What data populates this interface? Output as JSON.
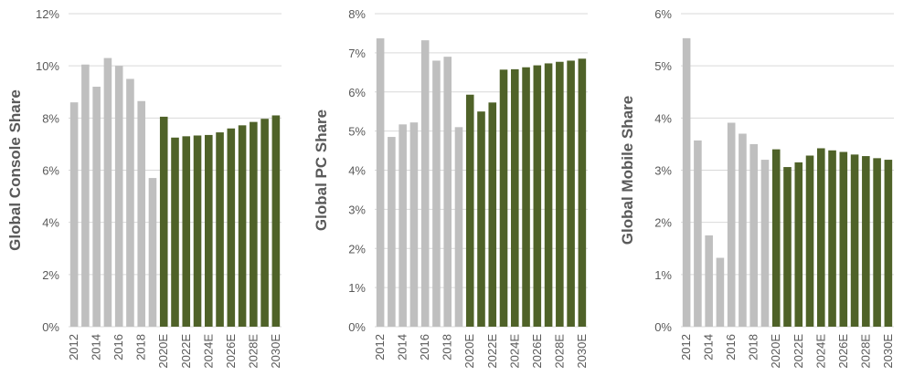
{
  "chart_data": [
    {
      "type": "bar",
      "ylabel": "Global Console Share",
      "ylim": [
        0,
        12
      ],
      "yticks": [
        0,
        2,
        4,
        6,
        8,
        10,
        12
      ],
      "ytick_labels": [
        "0%",
        "2%",
        "4%",
        "6%",
        "8%",
        "10%",
        "12%"
      ],
      "categories": [
        "2012",
        "2013",
        "2014",
        "2015",
        "2016",
        "2017",
        "2018",
        "2019",
        "2020E",
        "2021E",
        "2022E",
        "2023E",
        "2024E",
        "2025E",
        "2026E",
        "2027E",
        "2028E",
        "2029E",
        "2030E"
      ],
      "x_tick_labels": [
        "2012",
        "",
        "2014",
        "",
        "2016",
        "",
        "2018",
        "",
        "2020E",
        "",
        "2022E",
        "",
        "2024E",
        "",
        "2026E",
        "",
        "2028E",
        "",
        "2030E"
      ],
      "values": [
        8.6,
        10.05,
        9.2,
        10.3,
        10.0,
        9.5,
        8.65,
        5.7,
        8.05,
        7.25,
        7.3,
        7.33,
        7.35,
        7.45,
        7.6,
        7.72,
        7.85,
        7.97,
        8.1
      ],
      "grid": true,
      "colors": {
        "historical": "#bfbfbf",
        "estimate": "#4f6228"
      }
    },
    {
      "type": "bar",
      "ylabel": "Global PC Share",
      "ylim": [
        0,
        8
      ],
      "yticks": [
        0,
        1,
        2,
        3,
        4,
        5,
        6,
        7,
        8
      ],
      "ytick_labels": [
        "0%",
        "1%",
        "2%",
        "3%",
        "4%",
        "5%",
        "6%",
        "7%",
        "8%"
      ],
      "categories": [
        "2012",
        "2013",
        "2014",
        "2015",
        "2016",
        "2017",
        "2018",
        "2019",
        "2020E",
        "2021E",
        "2022E",
        "2023E",
        "2024E",
        "2025E",
        "2026E",
        "2027E",
        "2028E",
        "2029E",
        "2030E"
      ],
      "x_tick_labels": [
        "2012",
        "",
        "2014",
        "",
        "2016",
        "",
        "2018",
        "",
        "2020E",
        "",
        "2022E",
        "",
        "2024E",
        "",
        "2026E",
        "",
        "2028E",
        "",
        "2030E"
      ],
      "values": [
        7.37,
        4.85,
        5.17,
        5.22,
        7.32,
        6.8,
        6.9,
        5.1,
        5.93,
        5.5,
        5.73,
        6.57,
        6.58,
        6.63,
        6.68,
        6.73,
        6.77,
        6.8,
        6.85
      ],
      "grid": true,
      "colors": {
        "historical": "#bfbfbf",
        "estimate": "#4f6228"
      }
    },
    {
      "type": "bar",
      "ylabel": "Global Mobile Share",
      "ylim": [
        0,
        6
      ],
      "yticks": [
        0,
        1,
        2,
        3,
        4,
        5,
        6
      ],
      "ytick_labels": [
        "0%",
        "1%",
        "2%",
        "3%",
        "4%",
        "5%",
        "6%"
      ],
      "categories": [
        "2012",
        "2013",
        "2014",
        "2015",
        "2016",
        "2017",
        "2018",
        "2019",
        "2020E",
        "2021E",
        "2022E",
        "2023E",
        "2024E",
        "2025E",
        "2026E",
        "2027E",
        "2028E",
        "2029E",
        "2030E"
      ],
      "x_tick_labels": [
        "2012",
        "",
        "2014",
        "",
        "2016",
        "",
        "2018",
        "",
        "2020E",
        "",
        "2022E",
        "",
        "2024E",
        "",
        "2026E",
        "",
        "2028E",
        "",
        "2030E"
      ],
      "values": [
        5.53,
        3.57,
        1.75,
        1.32,
        3.91,
        3.7,
        3.5,
        3.2,
        3.4,
        3.06,
        3.15,
        3.28,
        3.42,
        3.38,
        3.35,
        3.3,
        3.27,
        3.23,
        3.2
      ],
      "grid": true,
      "colors": {
        "historical": "#bfbfbf",
        "estimate": "#4f6228"
      }
    }
  ]
}
